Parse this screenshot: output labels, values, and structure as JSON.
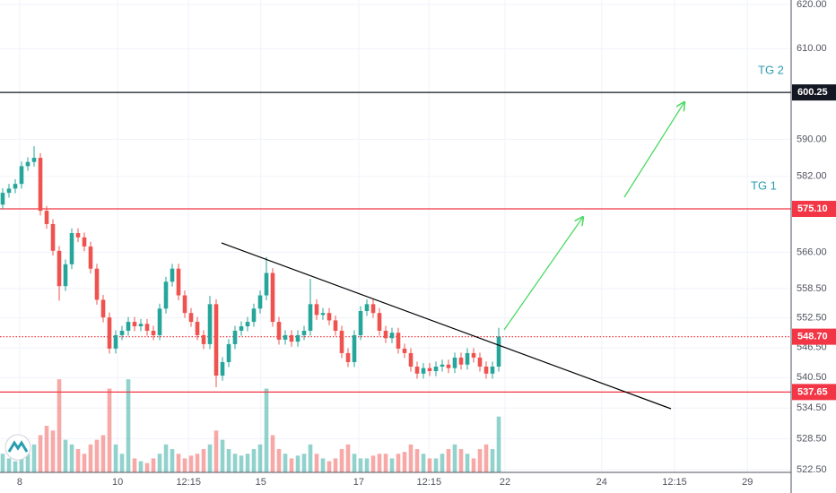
{
  "chart_data": {
    "type": "candlestick",
    "ylog": true,
    "grid": true,
    "ylim": [
      522,
      621
    ],
    "yticks": [
      {
        "value": 620,
        "label": "620.00"
      },
      {
        "value": 610,
        "label": "610.00"
      },
      {
        "value": 590,
        "label": "590.00"
      },
      {
        "value": 582,
        "label": "582.00"
      },
      {
        "value": 566,
        "label": "566.00"
      },
      {
        "value": 558.5,
        "label": "558.50"
      },
      {
        "value": 552.5,
        "label": "552.50"
      },
      {
        "value": 546.5,
        "label": "546.50"
      },
      {
        "value": 540.5,
        "label": "540.50"
      },
      {
        "value": 534.5,
        "label": "534.50"
      },
      {
        "value": 528.5,
        "label": "528.50"
      },
      {
        "value": 522.5,
        "label": "522.50"
      }
    ],
    "xlim": [
      -0.43,
      125.57
    ],
    "xticks": [
      {
        "value": 2.7,
        "label": "8"
      },
      {
        "value": 18.3,
        "label": "10"
      },
      {
        "value": 29.6,
        "label": "12:15"
      },
      {
        "value": 41.1,
        "label": "15"
      },
      {
        "value": 56.7,
        "label": "17"
      },
      {
        "value": 67.9,
        "label": "12:15"
      },
      {
        "value": 80,
        "label": "22"
      },
      {
        "value": 95.4,
        "label": "24"
      },
      {
        "value": 107,
        "label": "12:15"
      },
      {
        "value": 118.6,
        "label": "29"
      }
    ],
    "up_color": "#26a69a",
    "down_color": "#ef5350",
    "open": [
      576.0,
      578.5,
      579.4,
      580.4,
      584.2,
      585.1,
      586.0,
      574.7,
      571.9,
      566.3,
      559.0,
      563.5,
      570.0,
      569.1,
      567.2,
      562.6,
      556.2,
      552.6,
      546.3,
      549.0,
      549.9,
      551.7,
      550.8,
      551.3,
      549.9,
      549.0,
      554.4,
      559.9,
      562.6,
      557.1,
      553.5,
      551.7,
      549.0,
      547.2,
      555.3,
      540.9,
      543.6,
      547.2,
      549.9,
      550.8,
      551.7,
      554.4,
      557.1,
      561.7,
      551.7,
      548.1,
      549.0,
      547.7,
      549.0,
      549.9,
      555.3,
      553.1,
      553.5,
      552.0,
      549.9,
      545.4,
      543.6,
      549.0,
      553.9,
      555.3,
      553.5,
      549.9,
      548.4,
      549.5,
      546.3,
      545.4,
      542.7,
      541.3,
      542.4,
      541.8,
      542.7,
      543.1,
      542.4,
      544.5,
      543.1,
      545.4,
      544.5,
      542.7,
      541.3,
      542.7
    ],
    "high": [
      579.5,
      580.4,
      581.4,
      585.2,
      586.1,
      588.5,
      587.0,
      575.7,
      572.9,
      567.3,
      564.5,
      571.0,
      571.0,
      570.1,
      568.2,
      563.6,
      557.2,
      553.6,
      550.0,
      550.9,
      552.7,
      552.7,
      552.3,
      552.3,
      550.9,
      555.4,
      560.9,
      563.6,
      563.6,
      558.1,
      554.5,
      552.7,
      550.0,
      557.0,
      556.3,
      544.6,
      548.2,
      550.9,
      551.8,
      552.7,
      555.4,
      558.1,
      565.0,
      562.7,
      552.7,
      550.0,
      550.0,
      550.0,
      550.9,
      560.5,
      556.3,
      554.5,
      554.5,
      553.0,
      550.9,
      546.4,
      550.0,
      554.9,
      556.3,
      556.3,
      554.5,
      550.9,
      550.5,
      550.5,
      547.3,
      546.4,
      543.7,
      543.4,
      543.4,
      543.7,
      544.1,
      544.1,
      545.5,
      545.5,
      546.4,
      546.4,
      545.5,
      543.7,
      543.7,
      550.5
    ],
    "low": [
      575.0,
      577.5,
      578.4,
      579.4,
      583.2,
      584.1,
      573.7,
      570.9,
      565.3,
      556.0,
      558.0,
      562.5,
      568.1,
      566.2,
      561.6,
      555.2,
      551.6,
      545.3,
      545.3,
      548.0,
      548.9,
      549.8,
      549.8,
      548.9,
      548.0,
      548.0,
      553.4,
      558.9,
      556.1,
      552.5,
      550.7,
      548.0,
      546.2,
      546.2,
      538.6,
      539.9,
      542.6,
      546.2,
      548.9,
      549.8,
      550.7,
      553.4,
      556.1,
      550.7,
      547.1,
      547.1,
      546.7,
      546.7,
      548.0,
      548.9,
      552.1,
      552.1,
      551.0,
      548.9,
      544.4,
      542.6,
      542.6,
      548.0,
      552.9,
      552.5,
      548.9,
      547.4,
      547.4,
      545.3,
      544.4,
      541.7,
      540.3,
      540.3,
      540.8,
      540.8,
      541.7,
      541.4,
      541.4,
      542.1,
      542.1,
      543.5,
      541.7,
      540.3,
      540.3,
      541.7
    ],
    "close": [
      578.5,
      579.4,
      580.4,
      584.2,
      585.1,
      586.0,
      574.7,
      571.9,
      566.3,
      559.0,
      563.5,
      570.0,
      569.1,
      567.2,
      562.6,
      556.2,
      552.6,
      546.3,
      549.0,
      549.9,
      551.7,
      550.8,
      551.3,
      549.9,
      549.0,
      554.4,
      559.9,
      562.6,
      557.1,
      553.5,
      551.7,
      549.0,
      547.2,
      555.3,
      540.9,
      543.6,
      547.2,
      549.9,
      550.8,
      551.7,
      554.4,
      557.1,
      561.7,
      551.7,
      548.1,
      549.0,
      547.7,
      549.0,
      549.9,
      555.3,
      553.1,
      553.5,
      552.0,
      549.9,
      545.4,
      543.6,
      549.0,
      553.9,
      555.3,
      553.5,
      549.9,
      548.4,
      549.5,
      546.3,
      545.4,
      542.7,
      541.3,
      542.4,
      541.8,
      542.7,
      543.1,
      542.4,
      544.5,
      543.1,
      545.4,
      544.5,
      542.7,
      541.3,
      542.7,
      548.7
    ],
    "volume": [
      20,
      15,
      12,
      25,
      20,
      30,
      40,
      50,
      45,
      100,
      35,
      30,
      25,
      20,
      30,
      35,
      40,
      90,
      30,
      20,
      100,
      15,
      12,
      10,
      15,
      20,
      30,
      25,
      20,
      15,
      18,
      20,
      25,
      30,
      45,
      35,
      25,
      20,
      18,
      20,
      25,
      30,
      90,
      40,
      25,
      20,
      15,
      18,
      20,
      30,
      20,
      15,
      12,
      15,
      25,
      30,
      20,
      15,
      15,
      18,
      20,
      20,
      15,
      20,
      22,
      30,
      25,
      20,
      15,
      15,
      20,
      25,
      30,
      25,
      20,
      15,
      25,
      30,
      25,
      60
    ],
    "vlim": [
      0,
      130
    ],
    "price_lines": [
      {
        "value": 600.25,
        "label": "600.25",
        "color": "#131722",
        "style": "solid"
      },
      {
        "value": 575.1,
        "label": "575.10",
        "color": "#f23645",
        "style": "solid"
      },
      {
        "value": 548.7,
        "label": "548.70",
        "color": "#f23645",
        "style": "dotted"
      },
      {
        "value": 537.65,
        "label": "537.65",
        "color": "#f23645",
        "style": "solid"
      }
    ],
    "annotations": [
      "TG 2",
      "TG 1"
    ]
  }
}
